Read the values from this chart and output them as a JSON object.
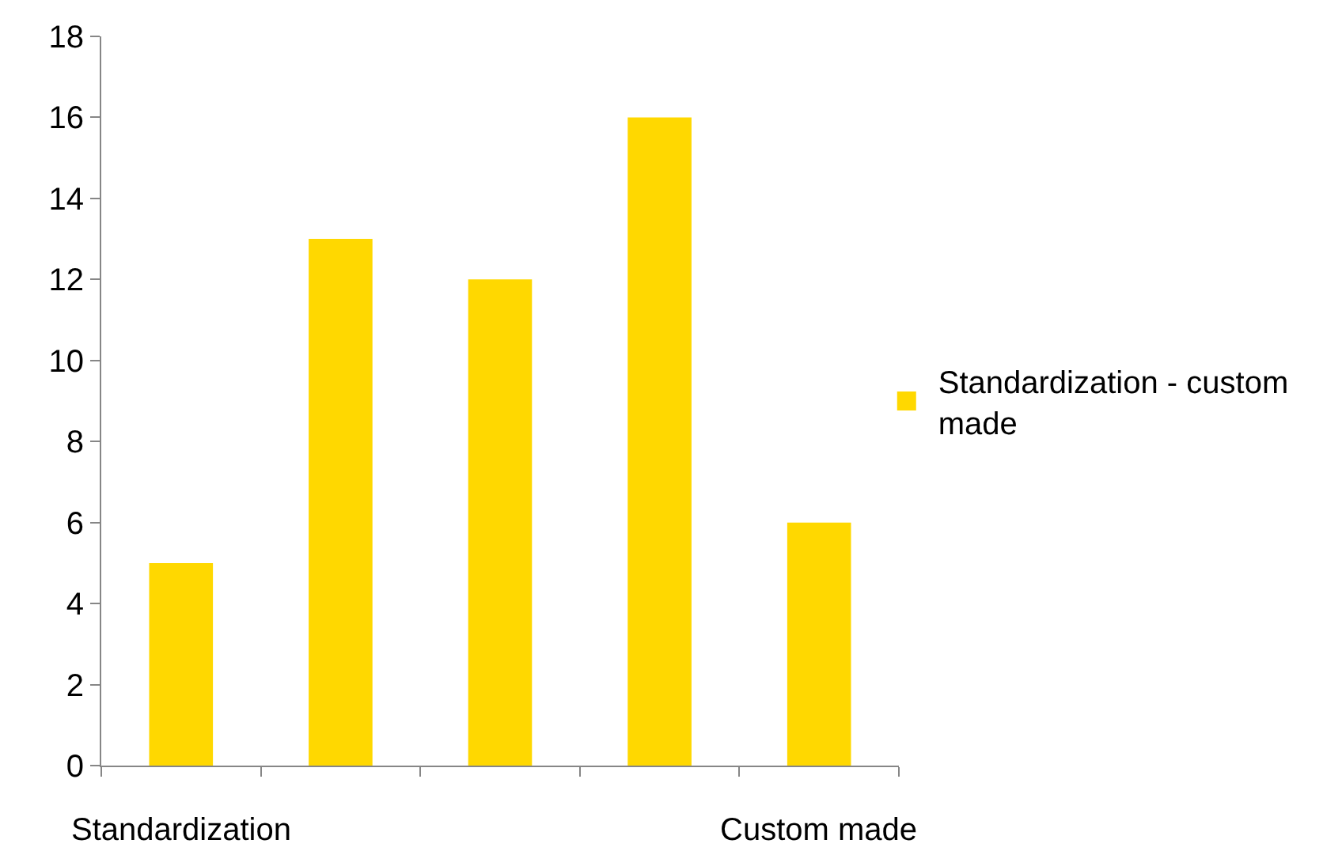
{
  "chart_data": {
    "type": "bar",
    "categories": [
      "Standardization",
      null,
      null,
      null,
      "Custom made"
    ],
    "series": [
      {
        "name": "Standardization - custom made",
        "color": "#ffd800",
        "values": [
          5,
          13,
          12,
          16,
          6
        ]
      }
    ],
    "ylim": [
      0,
      18
    ],
    "yticks": [
      0,
      2,
      4,
      6,
      8,
      10,
      12,
      14,
      16,
      18
    ],
    "legend": "right"
  }
}
